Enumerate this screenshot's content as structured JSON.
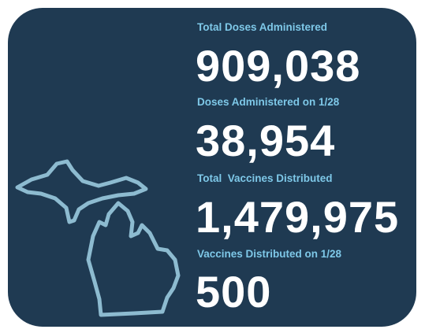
{
  "stats": [
    {
      "label": "Total Doses Administered",
      "value": "909,038"
    },
    {
      "label": "Doses Administered on 1/28",
      "value": "38,954"
    },
    {
      "label": "Total  Vaccines Distributed",
      "value": "1,479,975"
    },
    {
      "label": "Vaccines Distributed on 1/28",
      "value": "500"
    }
  ]
}
